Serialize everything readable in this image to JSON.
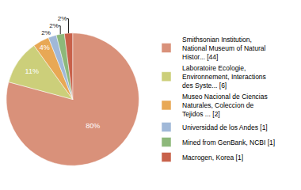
{
  "chart_data": {
    "type": "pie",
    "labels": [
      "Smithsonian Institution,\nNational Museum of Natural\nHistor... [44]",
      "Laboratoire Ecologie,\nEnvironnement, Interactions\ndes Syste... [6]",
      "Museo Nacional de Ciencias\nNaturales, Coleccion de\nTejidos ... [2]",
      "Universidad de los Andes [1]",
      "Mined from GenBank, NCBI [1]",
      "Macrogen, Korea [1]"
    ],
    "values": [
      80,
      11,
      4,
      2,
      2,
      2
    ],
    "value_labels": [
      "80%",
      "11%",
      "4%",
      "2%",
      "2%",
      "2%"
    ],
    "colors": [
      "#d9917a",
      "#cccf7a",
      "#e8a855",
      "#a0b8d8",
      "#8db87a",
      "#c8614a"
    ],
    "data_labels": true,
    "legend": "right"
  }
}
